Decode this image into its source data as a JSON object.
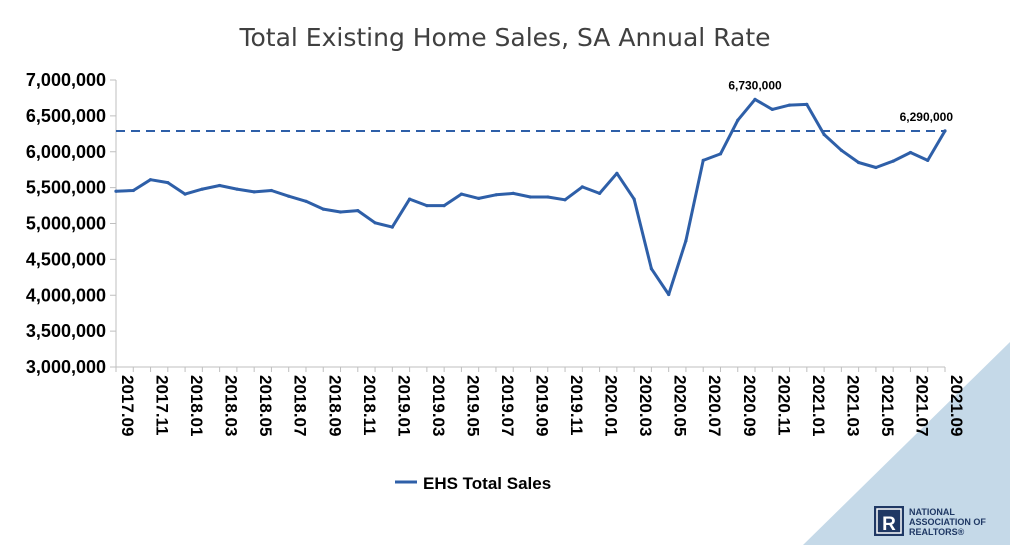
{
  "chart_data": {
    "type": "line",
    "title": "Total Existing Home Sales, SA Annual Rate",
    "xlabel": "",
    "ylabel": "",
    "ylim": [
      3000000,
      7000000
    ],
    "yticks": [
      "3,000,000",
      "3,500,000",
      "4,000,000",
      "4,500,000",
      "5,000,000",
      "5,500,000",
      "6,000,000",
      "6,500,000",
      "7,000,000"
    ],
    "x_tick_labels": [
      "2017.09",
      "2017.11",
      "2018.01",
      "2018.03",
      "2018.05",
      "2018.07",
      "2018.09",
      "2018.11",
      "2019.01",
      "2019.03",
      "2019.05",
      "2019.07",
      "2019.09",
      "2019.11",
      "2020.01",
      "2020.03",
      "2020.05",
      "2020.07",
      "2020.09",
      "2020.11",
      "2021.01",
      "2021.03",
      "2021.05",
      "2021.07",
      "2021.09"
    ],
    "x": [
      "2017.09",
      "2017.10",
      "2017.11",
      "2017.12",
      "2018.01",
      "2018.02",
      "2018.03",
      "2018.04",
      "2018.05",
      "2018.06",
      "2018.07",
      "2018.08",
      "2018.09",
      "2018.10",
      "2018.11",
      "2018.12",
      "2019.01",
      "2019.02",
      "2019.03",
      "2019.04",
      "2019.05",
      "2019.06",
      "2019.07",
      "2019.08",
      "2019.09",
      "2019.10",
      "2019.11",
      "2019.12",
      "2020.01",
      "2020.02",
      "2020.03",
      "2020.04",
      "2020.05",
      "2020.06",
      "2020.07",
      "2020.08",
      "2020.09",
      "2020.10",
      "2020.11",
      "2020.12",
      "2021.01",
      "2021.02",
      "2021.03",
      "2021.04",
      "2021.05",
      "2021.06",
      "2021.07",
      "2021.08",
      "2021.09"
    ],
    "series": [
      {
        "name": "EHS Total Sales",
        "color": "#2e5fa8",
        "values": [
          5450000,
          5460000,
          5610000,
          5570000,
          5410000,
          5480000,
          5530000,
          5480000,
          5440000,
          5460000,
          5380000,
          5310000,
          5200000,
          5160000,
          5180000,
          5010000,
          4950000,
          5340000,
          5250000,
          5250000,
          5410000,
          5350000,
          5400000,
          5420000,
          5370000,
          5370000,
          5330000,
          5510000,
          5420000,
          5700000,
          5340000,
          4370000,
          4010000,
          4760000,
          5880000,
          5970000,
          6440000,
          6730000,
          6590000,
          6650000,
          6660000,
          6240000,
          6020000,
          5850000,
          5780000,
          5870000,
          5990000,
          5880000,
          6290000
        ]
      }
    ],
    "reference_line": {
      "value": 6290000,
      "style": "dashed",
      "color": "#2e5fa8"
    },
    "data_labels": [
      {
        "x": "2020.10",
        "text": "6,730,000"
      },
      {
        "x": "2021.09",
        "text": "6,290,000"
      }
    ],
    "legend": {
      "position": "bottom",
      "entries": [
        "EHS Total Sales"
      ]
    },
    "grid": false
  },
  "logo": {
    "line1": "NATIONAL",
    "line2": "ASSOCIATION OF",
    "line3": "REALTORS®",
    "mark": "R",
    "triangle_color": "#c5d9e8",
    "mark_color": "#1f3864"
  }
}
